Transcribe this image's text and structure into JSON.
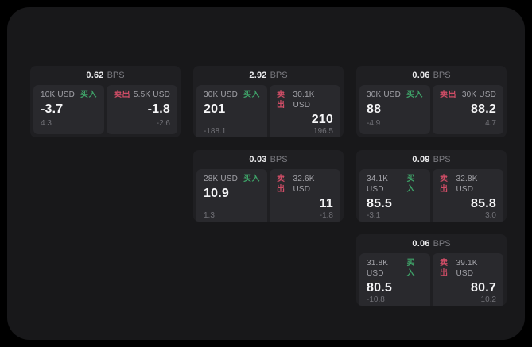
{
  "colors": {
    "page_bg": "#000000",
    "surface_bg": "#18181a",
    "card_bg": "#1f1f22",
    "tile_bg": "#29292d",
    "buy_color": "#3fa469",
    "sell_color": "#cf4d66"
  },
  "labels": {
    "bps": "BPS",
    "buy": "买入",
    "sell": "卖出"
  },
  "cards": [
    {
      "bps": "0.62",
      "buy": {
        "amount": "10K USD",
        "value": "-3.7",
        "sub": "4.3"
      },
      "sell": {
        "amount": "5.5K USD",
        "value": "-1.8",
        "sub": "-2.6"
      }
    },
    {
      "bps": "2.92",
      "buy": {
        "amount": "30K USD",
        "value": "201",
        "sub": "-188.1"
      },
      "sell": {
        "amount": "30.1K USD",
        "value": "210",
        "sub": "196.5"
      }
    },
    {
      "bps": "0.06",
      "buy": {
        "amount": "30K USD",
        "value": "88",
        "sub": "-4.9"
      },
      "sell": {
        "amount": "30K USD",
        "value": "88.2",
        "sub": "4.7"
      }
    },
    {
      "bps": "0.03",
      "buy": {
        "amount": "28K USD",
        "value": "10.9",
        "sub": "1.3"
      },
      "sell": {
        "amount": "32.6K USD",
        "value": "11",
        "sub": "-1.8"
      }
    },
    {
      "bps": "0.09",
      "buy": {
        "amount": "34.1K USD",
        "value": "85.5",
        "sub": "-3.1"
      },
      "sell": {
        "amount": "32.8K USD",
        "value": "85.8",
        "sub": "3.0"
      }
    },
    {
      "bps": "0.06",
      "buy": {
        "amount": "31.8K USD",
        "value": "80.5",
        "sub": "-10.8"
      },
      "sell": {
        "amount": "39.1K USD",
        "value": "80.7",
        "sub": "10.2"
      }
    }
  ]
}
